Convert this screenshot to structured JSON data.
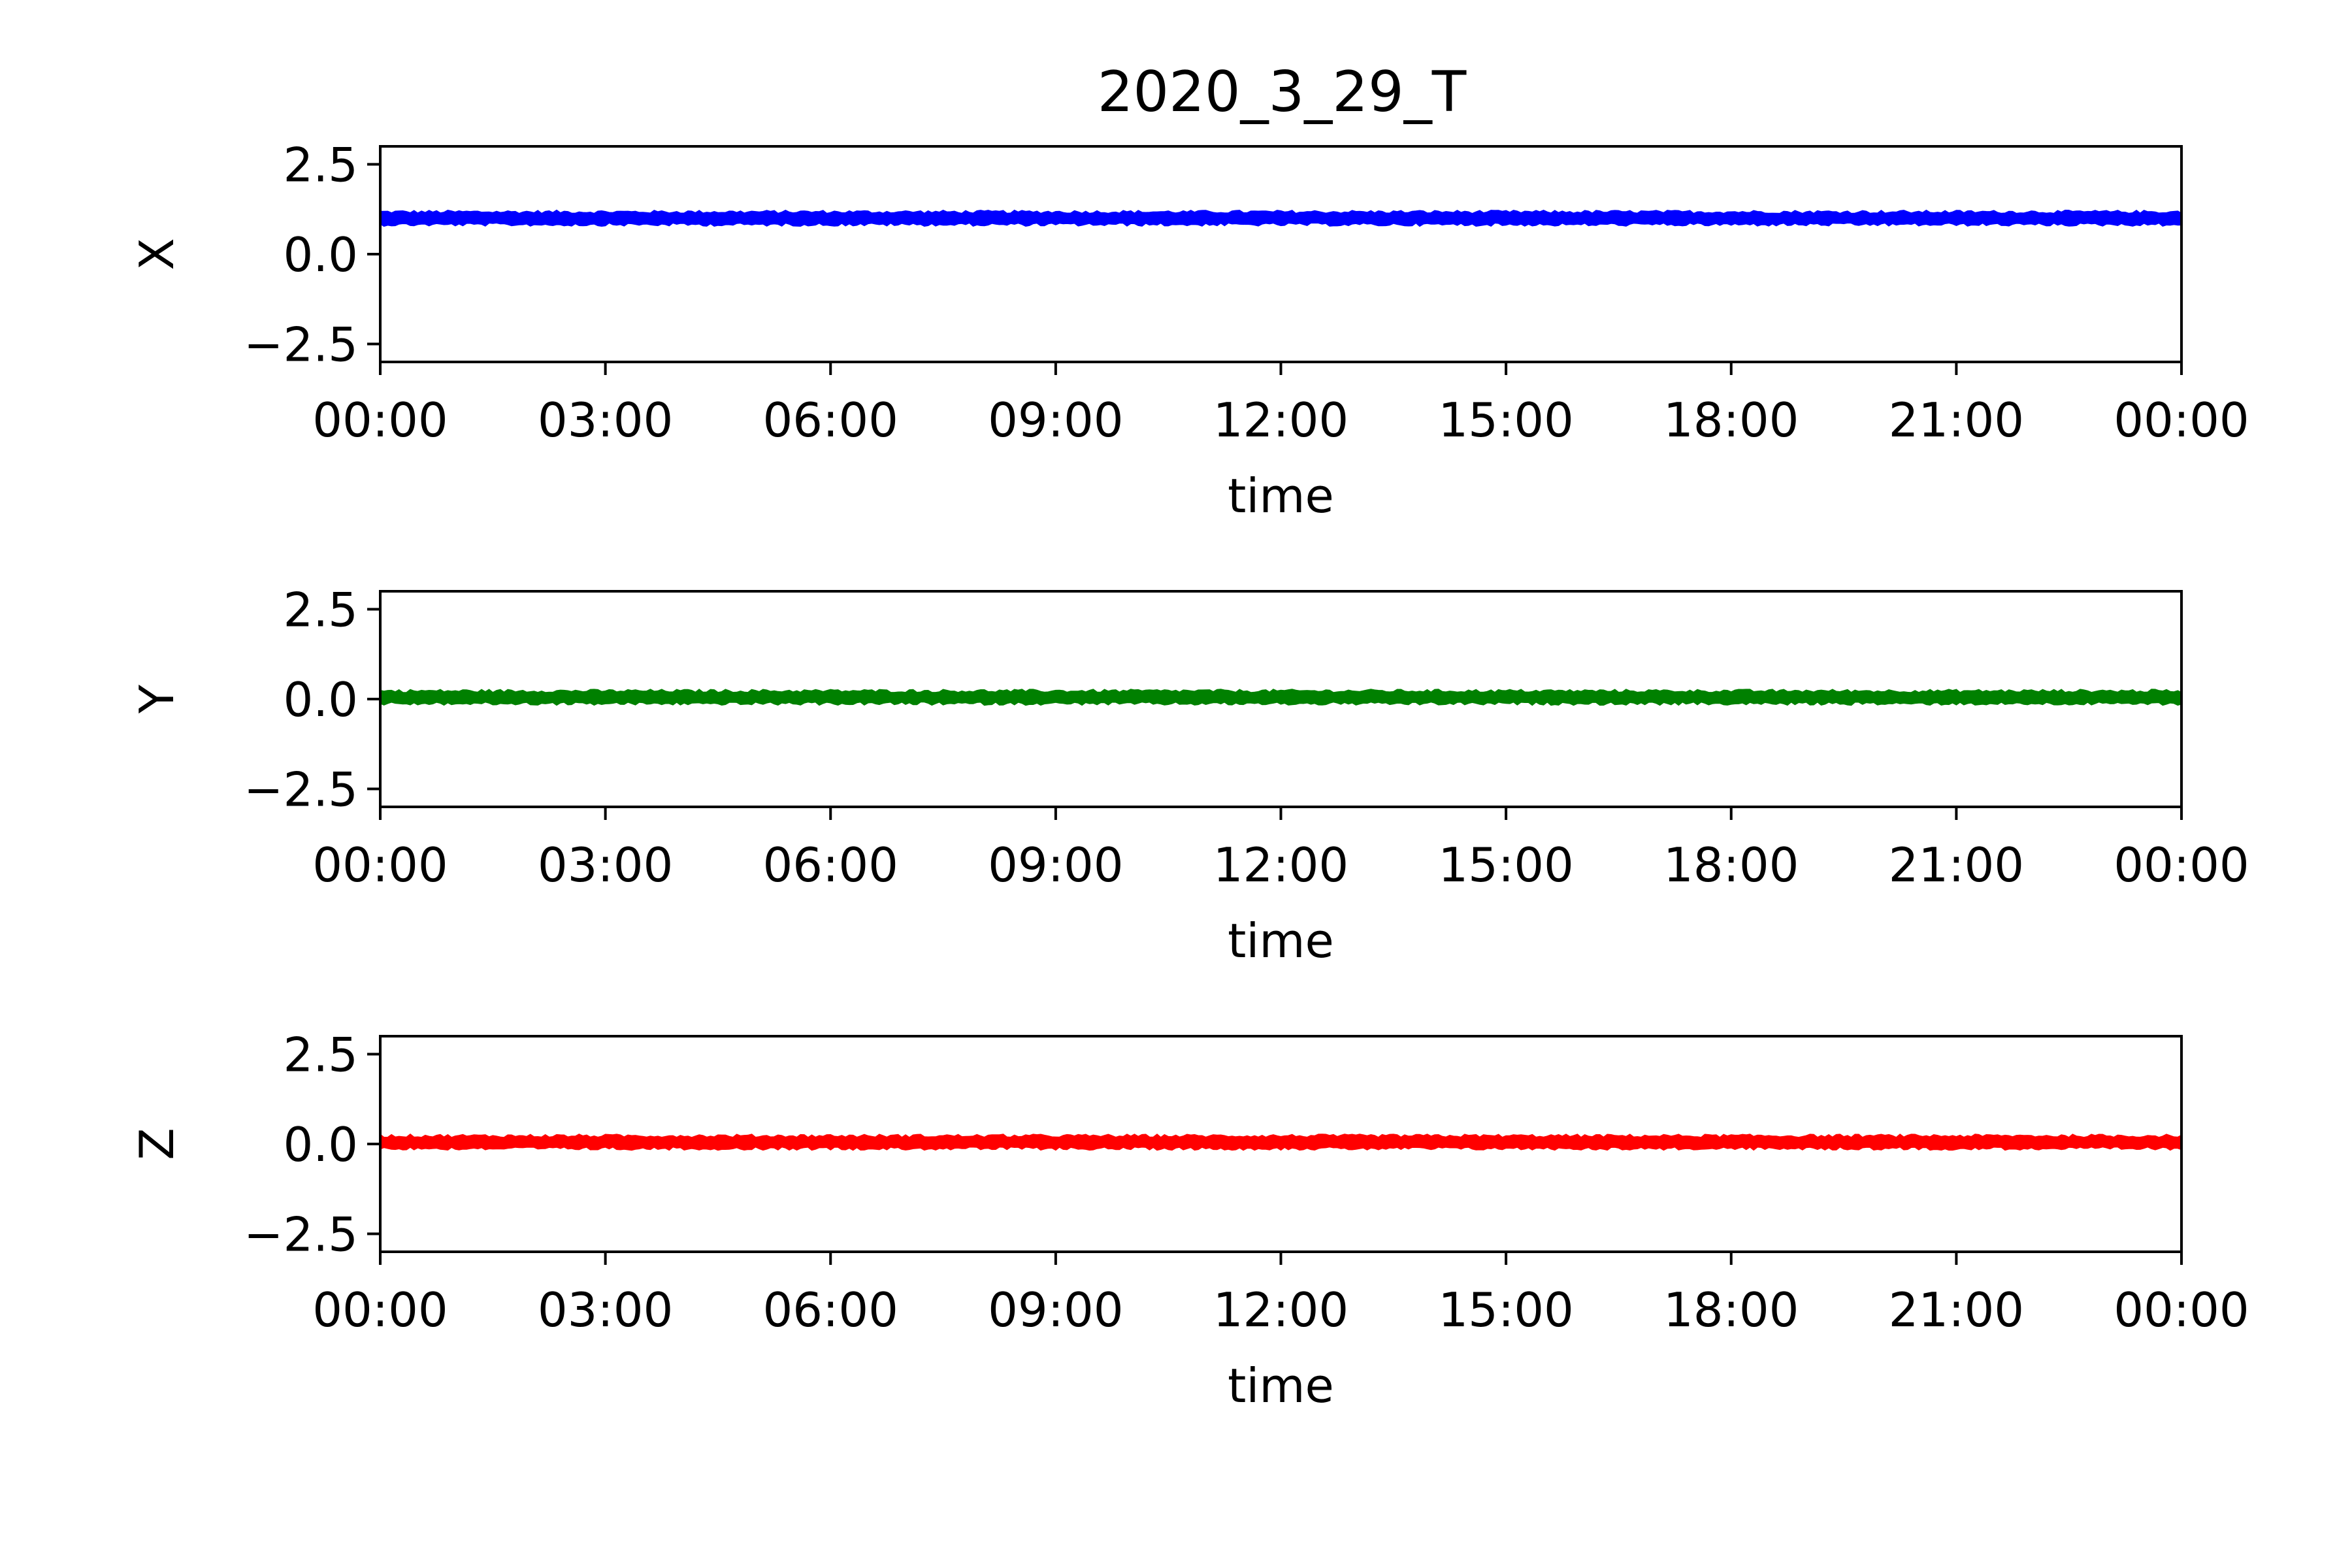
{
  "chart_data": {
    "type": "line",
    "title": "2020_3_29_T",
    "subplots": [
      {
        "ylabel": "X",
        "xlabel": "time",
        "color": "#0000ff",
        "series_level": 1.0,
        "ylim": [
          -3,
          3
        ],
        "yticks": [
          {
            "value": 2.5,
            "label": "2.5"
          },
          {
            "value": 0.0,
            "label": "0.0"
          },
          {
            "value": -2.5,
            "label": "−2.5"
          }
        ]
      },
      {
        "ylabel": "Y",
        "xlabel": "time",
        "color": "#008000",
        "series_level": 0.05,
        "ylim": [
          -3,
          3
        ],
        "yticks": [
          {
            "value": 2.5,
            "label": "2.5"
          },
          {
            "value": 0.0,
            "label": "0.0"
          },
          {
            "value": -2.5,
            "label": "−2.5"
          }
        ]
      },
      {
        "ylabel": "Z",
        "xlabel": "time",
        "color": "#ff0000",
        "series_level": 0.05,
        "ylim": [
          -3,
          3
        ],
        "yticks": [
          {
            "value": 2.5,
            "label": "2.5"
          },
          {
            "value": 0.0,
            "label": "0.0"
          },
          {
            "value": -2.5,
            "label": "−2.5"
          }
        ]
      }
    ],
    "xticks": [
      "00:00",
      "03:00",
      "06:00",
      "09:00",
      "12:00",
      "15:00",
      "18:00",
      "21:00",
      "00:00"
    ],
    "grid": false
  }
}
